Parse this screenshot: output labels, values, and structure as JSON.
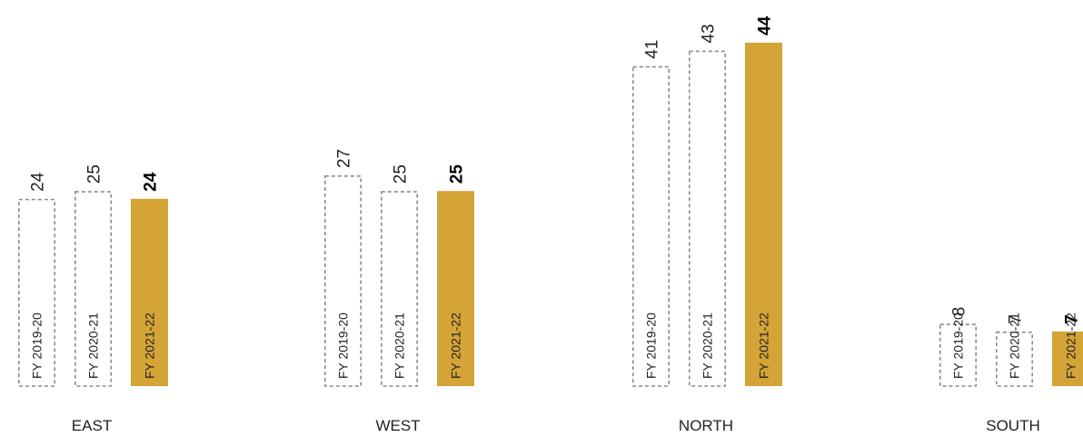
{
  "chart_data": {
    "type": "bar",
    "categories": [
      "EAST",
      "WEST",
      "NORTH",
      "SOUTH"
    ],
    "series": [
      {
        "name": "FY 2019-20",
        "values": [
          24,
          27,
          41,
          8
        ]
      },
      {
        "name": "FY 2020-21",
        "values": [
          25,
          25,
          43,
          7
        ]
      },
      {
        "name": "FY 2021-22",
        "values": [
          24,
          25,
          44,
          7
        ]
      }
    ],
    "highlight_series": "FY 2021-22",
    "colors": {
      "highlight": "#D4A437",
      "dashed_outline": "#8c8c8c"
    },
    "title": "",
    "xlabel": "",
    "ylabel": "",
    "legend": "none",
    "grid": false
  }
}
